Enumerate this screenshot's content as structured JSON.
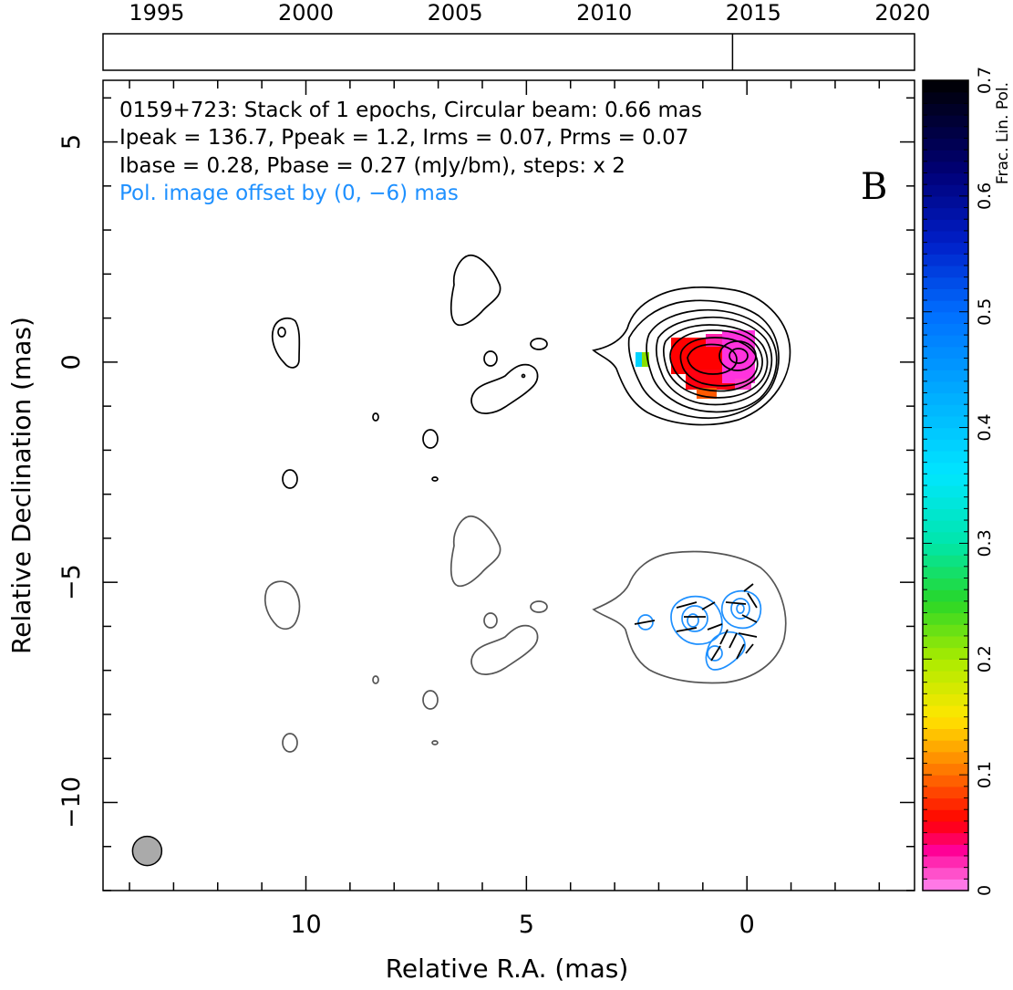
{
  "chart_data": {
    "type": "contour",
    "title": "",
    "annotations": {
      "line1": "0159+723: Stack of 1 epochs, Circular beam: 0.66 mas",
      "line2": "Ipeak = 136.7, Ppeak = 1.2, Irms = 0.07, Prms = 0.07",
      "line3": "Ibase = 0.28, Pbase = 0.27 (mJy/bm), steps: x 2",
      "line4": "Pol. image offset by (0, −6) mas",
      "panel_label": "B"
    },
    "xlabel": "Relative R.A. (mas)",
    "ylabel": "Relative Declination (mas)",
    "xlim": [
      14.6,
      -3.8
    ],
    "ylim": [
      -12.0,
      6.4
    ],
    "x_ticks": [
      10,
      5,
      0
    ],
    "y_ticks": [
      5,
      0,
      -5,
      -10
    ],
    "x_tick_labels": [
      "10",
      "5",
      "0"
    ],
    "y_tick_labels": [
      "5",
      "0",
      "−5",
      "−10"
    ],
    "beam": {
      "ra": 13.6,
      "dec": -11.1,
      "diameter_mas": 0.66
    },
    "timeline": {
      "range": [
        1993.2,
        2020.4
      ],
      "ticks": [
        1995,
        2000,
        2005,
        2010,
        2015,
        2020
      ],
      "epochs": [
        2014.3
      ]
    },
    "colorbar": {
      "label": "Frac. Lin. Pol.",
      "range": [
        0,
        0.7
      ],
      "ticks": [
        "0",
        "0.1",
        "0.2",
        "0.3",
        "0.4",
        "0.5",
        "0.6",
        "0.7"
      ]
    },
    "colors": {
      "intensity_contours": "#000000",
      "pol_intensity_contours": "#1e90ff",
      "total_intensity_offset_contours": "#555555",
      "beam_fill": "#aaaaaa",
      "annotation_highlight": "#1e90ff"
    }
  }
}
